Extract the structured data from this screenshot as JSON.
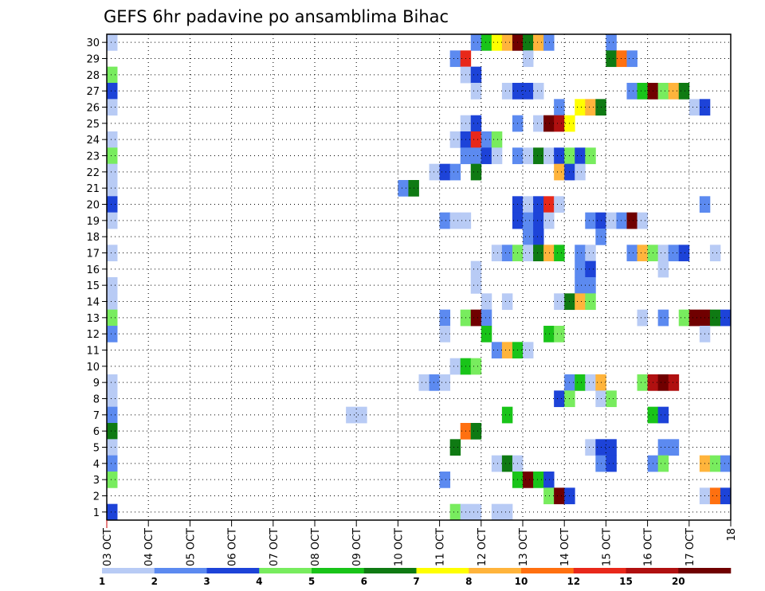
{
  "chart_data": {
    "type": "heatmap",
    "title": "GEFS 6hr padavine po ansamblima Bihac",
    "xlabel": "",
    "ylabel": "",
    "x_ticks": [
      "03 OCT",
      "04 OCT",
      "05 OCT",
      "06 OCT",
      "07 OCT",
      "08 OCT",
      "09 OCT",
      "10 OCT",
      "11 OCT",
      "12 OCT",
      "13 OCT",
      "14 OCT",
      "15 OCT",
      "16 OCT",
      "17 OCT",
      "18"
    ],
    "y_ticks": [
      "1",
      "2",
      "3",
      "4",
      "5",
      "6",
      "7",
      "8",
      "9",
      "10",
      "11",
      "12",
      "13",
      "14",
      "15",
      "16",
      "17",
      "18",
      "19",
      "20",
      "21",
      "22",
      "23",
      "24",
      "25",
      "26",
      "27",
      "28",
      "29",
      "30"
    ],
    "xlim_days": [
      0,
      15
    ],
    "time_step_hours": 6,
    "ylim": [
      0.5,
      30.5
    ],
    "grid": true,
    "colorbar": {
      "position": "bottom",
      "labels": [
        "1",
        "2",
        "3",
        "4",
        "5",
        "6",
        "7",
        "8",
        "10",
        "12",
        "15",
        "20"
      ],
      "colors": [
        "#b8cbf5",
        "#5c8af0",
        "#1d43d8",
        "#78ec5e",
        "#19c419",
        "#0f7a13",
        "#ffff00",
        "#ffb43c",
        "#ff7010",
        "#e8281a",
        "#b01010",
        "#700000"
      ]
    },
    "palette": {
      "L": "#b8cbf5",
      "M": "#5c8af0",
      "B": "#1d43d8",
      "g": "#78ec5e",
      "G": "#19c419",
      "D": "#0f7a13",
      "Y": "#ffff00",
      "O": "#ffb43c",
      "o": "#ff7010",
      "R": "#e8281a",
      "r": "#b01010",
      "K": "#700000"
    },
    "members": [
      {
        "member": 30,
        "cells": [
          [
            0,
            "L"
          ],
          [
            35,
            "M"
          ],
          [
            36,
            "G"
          ],
          [
            37,
            "Y"
          ],
          [
            38,
            "O"
          ],
          [
            39,
            "K"
          ],
          [
            40,
            "D"
          ],
          [
            41,
            "O"
          ],
          [
            42,
            "M"
          ],
          [
            48,
            "M"
          ]
        ]
      },
      {
        "member": 29,
        "cells": [
          [
            33,
            "M"
          ],
          [
            34,
            "R"
          ],
          [
            40,
            "L"
          ],
          [
            48,
            "D"
          ],
          [
            49,
            "o"
          ],
          [
            50,
            "M"
          ]
        ]
      },
      {
        "member": 28,
        "cells": [
          [
            0,
            "g"
          ],
          [
            34,
            "L"
          ],
          [
            35,
            "B"
          ]
        ]
      },
      {
        "member": 27,
        "cells": [
          [
            0,
            "B"
          ],
          [
            35,
            "L"
          ],
          [
            38,
            "L"
          ],
          [
            39,
            "B"
          ],
          [
            40,
            "B"
          ],
          [
            41,
            "L"
          ],
          [
            50,
            "M"
          ],
          [
            51,
            "G"
          ],
          [
            52,
            "K"
          ],
          [
            53,
            "g"
          ],
          [
            54,
            "O"
          ],
          [
            55,
            "D"
          ]
        ]
      },
      {
        "member": 26,
        "cells": [
          [
            0,
            "L"
          ],
          [
            43,
            "M"
          ],
          [
            45,
            "Y"
          ],
          [
            46,
            "O"
          ],
          [
            47,
            "D"
          ],
          [
            56,
            "L"
          ],
          [
            57,
            "B"
          ]
        ]
      },
      {
        "member": 25,
        "cells": [
          [
            34,
            "L"
          ],
          [
            35,
            "B"
          ],
          [
            39,
            "M"
          ],
          [
            41,
            "L"
          ],
          [
            42,
            "K"
          ],
          [
            43,
            "r"
          ],
          [
            44,
            "Y"
          ]
        ]
      },
      {
        "member": 24,
        "cells": [
          [
            0,
            "L"
          ],
          [
            33,
            "L"
          ],
          [
            34,
            "B"
          ],
          [
            35,
            "R"
          ],
          [
            36,
            "M"
          ],
          [
            37,
            "g"
          ]
        ]
      },
      {
        "member": 23,
        "cells": [
          [
            0,
            "g"
          ],
          [
            34,
            "M"
          ],
          [
            35,
            "M"
          ],
          [
            36,
            "B"
          ],
          [
            37,
            "L"
          ],
          [
            39,
            "M"
          ],
          [
            40,
            "L"
          ],
          [
            41,
            "D"
          ],
          [
            42,
            "L"
          ],
          [
            43,
            "B"
          ],
          [
            44,
            "g"
          ],
          [
            45,
            "B"
          ],
          [
            46,
            "g"
          ]
        ]
      },
      {
        "member": 22,
        "cells": [
          [
            0,
            "L"
          ],
          [
            31,
            "L"
          ],
          [
            32,
            "B"
          ],
          [
            33,
            "M"
          ],
          [
            35,
            "D"
          ],
          [
            43,
            "O"
          ],
          [
            44,
            "B"
          ],
          [
            45,
            "L"
          ]
        ]
      },
      {
        "member": 21,
        "cells": [
          [
            0,
            "L"
          ],
          [
            28,
            "M"
          ],
          [
            29,
            "D"
          ]
        ]
      },
      {
        "member": 20,
        "cells": [
          [
            0,
            "B"
          ],
          [
            39,
            "B"
          ],
          [
            40,
            "L"
          ],
          [
            41,
            "B"
          ],
          [
            42,
            "R"
          ],
          [
            43,
            "L"
          ],
          [
            57,
            "M"
          ]
        ]
      },
      {
        "member": 19,
        "cells": [
          [
            0,
            "L"
          ],
          [
            32,
            "M"
          ],
          [
            33,
            "L"
          ],
          [
            34,
            "L"
          ],
          [
            39,
            "B"
          ],
          [
            40,
            "M"
          ],
          [
            41,
            "B"
          ],
          [
            42,
            "L"
          ],
          [
            46,
            "M"
          ],
          [
            47,
            "B"
          ],
          [
            48,
            "L"
          ],
          [
            49,
            "M"
          ],
          [
            50,
            "K"
          ],
          [
            51,
            "L"
          ]
        ]
      },
      {
        "member": 18,
        "cells": [
          [
            40,
            "M"
          ],
          [
            41,
            "B"
          ],
          [
            47,
            "M"
          ]
        ]
      },
      {
        "member": 17,
        "cells": [
          [
            0,
            "L"
          ],
          [
            37,
            "L"
          ],
          [
            38,
            "M"
          ],
          [
            39,
            "g"
          ],
          [
            40,
            "L"
          ],
          [
            41,
            "D"
          ],
          [
            42,
            "O"
          ],
          [
            43,
            "G"
          ],
          [
            45,
            "M"
          ],
          [
            46,
            "L"
          ],
          [
            50,
            "M"
          ],
          [
            51,
            "O"
          ],
          [
            52,
            "g"
          ],
          [
            53,
            "L"
          ],
          [
            54,
            "M"
          ],
          [
            55,
            "B"
          ],
          [
            58,
            "L"
          ]
        ]
      },
      {
        "member": 16,
        "cells": [
          [
            35,
            "L"
          ],
          [
            45,
            "M"
          ],
          [
            46,
            "B"
          ],
          [
            53,
            "L"
          ]
        ]
      },
      {
        "member": 15,
        "cells": [
          [
            0,
            "L"
          ],
          [
            35,
            "L"
          ],
          [
            45,
            "M"
          ],
          [
            46,
            "M"
          ]
        ]
      },
      {
        "member": 14,
        "cells": [
          [
            0,
            "L"
          ],
          [
            36,
            "L"
          ],
          [
            38,
            "L"
          ],
          [
            43,
            "L"
          ],
          [
            44,
            "D"
          ],
          [
            45,
            "O"
          ],
          [
            46,
            "g"
          ]
        ]
      },
      {
        "member": 13,
        "cells": [
          [
            0,
            "g"
          ],
          [
            32,
            "M"
          ],
          [
            34,
            "g"
          ],
          [
            35,
            "K"
          ],
          [
            36,
            "M"
          ],
          [
            51,
            "L"
          ],
          [
            53,
            "M"
          ],
          [
            55,
            "g"
          ],
          [
            56,
            "K"
          ],
          [
            57,
            "K"
          ],
          [
            58,
            "D"
          ],
          [
            59,
            "B"
          ]
        ]
      },
      {
        "member": 12,
        "cells": [
          [
            0,
            "M"
          ],
          [
            32,
            "L"
          ],
          [
            36,
            "G"
          ],
          [
            42,
            "G"
          ],
          [
            43,
            "g"
          ],
          [
            57,
            "L"
          ]
        ]
      },
      {
        "member": 11,
        "cells": [
          [
            37,
            "M"
          ],
          [
            38,
            "O"
          ],
          [
            39,
            "G"
          ],
          [
            40,
            "L"
          ]
        ]
      },
      {
        "member": 10,
        "cells": [
          [
            33,
            "L"
          ],
          [
            34,
            "G"
          ],
          [
            35,
            "g"
          ]
        ]
      },
      {
        "member": 9,
        "cells": [
          [
            0,
            "L"
          ],
          [
            30,
            "L"
          ],
          [
            31,
            "M"
          ],
          [
            32,
            "L"
          ],
          [
            44,
            "M"
          ],
          [
            45,
            "G"
          ],
          [
            46,
            "L"
          ],
          [
            47,
            "O"
          ],
          [
            51,
            "g"
          ],
          [
            52,
            "r"
          ],
          [
            53,
            "K"
          ],
          [
            54,
            "r"
          ]
        ]
      },
      {
        "member": 8,
        "cells": [
          [
            0,
            "L"
          ],
          [
            43,
            "B"
          ],
          [
            44,
            "g"
          ],
          [
            47,
            "L"
          ],
          [
            48,
            "g"
          ]
        ]
      },
      {
        "member": 7,
        "cells": [
          [
            0,
            "M"
          ],
          [
            23,
            "L"
          ],
          [
            24,
            "L"
          ],
          [
            38,
            "G"
          ],
          [
            52,
            "G"
          ],
          [
            53,
            "B"
          ]
        ]
      },
      {
        "member": 6,
        "cells": [
          [
            0,
            "D"
          ],
          [
            34,
            "o"
          ],
          [
            35,
            "D"
          ]
        ]
      },
      {
        "member": 5,
        "cells": [
          [
            0,
            "L"
          ],
          [
            33,
            "D"
          ],
          [
            46,
            "L"
          ],
          [
            47,
            "B"
          ],
          [
            48,
            "B"
          ],
          [
            53,
            "M"
          ],
          [
            54,
            "M"
          ]
        ]
      },
      {
        "member": 4,
        "cells": [
          [
            0,
            "M"
          ],
          [
            37,
            "L"
          ],
          [
            38,
            "D"
          ],
          [
            39,
            "L"
          ],
          [
            47,
            "M"
          ],
          [
            48,
            "B"
          ],
          [
            52,
            "M"
          ],
          [
            53,
            "g"
          ],
          [
            57,
            "O"
          ],
          [
            58,
            "g"
          ],
          [
            59,
            "M"
          ]
        ]
      },
      {
        "member": 3,
        "cells": [
          [
            0,
            "g"
          ],
          [
            32,
            "M"
          ],
          [
            39,
            "G"
          ],
          [
            40,
            "K"
          ],
          [
            41,
            "G"
          ],
          [
            42,
            "B"
          ]
        ]
      },
      {
        "member": 2,
        "cells": [
          [
            42,
            "g"
          ],
          [
            43,
            "K"
          ],
          [
            44,
            "B"
          ],
          [
            57,
            "L"
          ],
          [
            58,
            "o"
          ],
          [
            59,
            "B"
          ]
        ]
      },
      {
        "member": 1,
        "cells": [
          [
            0,
            "B"
          ],
          [
            33,
            "g"
          ],
          [
            34,
            "L"
          ],
          [
            35,
            "L"
          ],
          [
            37,
            "L"
          ],
          [
            38,
            "L"
          ]
        ]
      }
    ]
  }
}
